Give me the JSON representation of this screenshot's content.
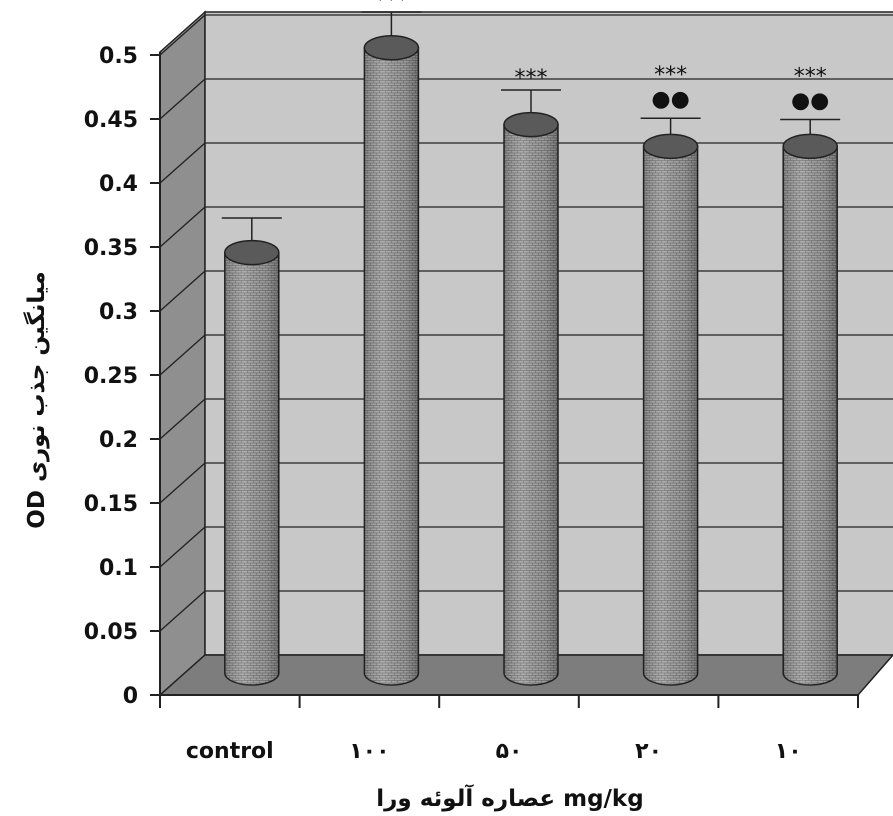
{
  "chart_data": {
    "type": "bar",
    "style": "3d-cylinder",
    "categories": [
      "control",
      "۱۰۰",
      "۵۰",
      "۲۰",
      "۱۰"
    ],
    "values": [
      0.33,
      0.49,
      0.43,
      0.413,
      0.413
    ],
    "error": [
      0.027,
      0.028,
      0.027,
      0.022,
      0.021
    ],
    "significance": [
      "",
      "***",
      "***",
      "***",
      "***"
    ],
    "significance2": [
      "",
      "",
      "",
      "●●",
      "●●"
    ],
    "yticks": [
      "0",
      "0.05",
      "0.1",
      "0.15",
      "0.2",
      "0.25",
      "0.3",
      "0.35",
      "0.4",
      "0.45",
      "0.5"
    ],
    "ylim": [
      0,
      0.5
    ],
    "ylabel": "OD میانگین جذب نوری",
    "xlabel": "عصاره آلوئه ورا mg/kg",
    "grid": true,
    "colors": {
      "wall": "#c8c8c8",
      "side_wall": "#8f8f8f",
      "floor": "#7d7d7d",
      "bar": "#9a9a9a",
      "bar_dark": "#5a5a5a"
    }
  }
}
